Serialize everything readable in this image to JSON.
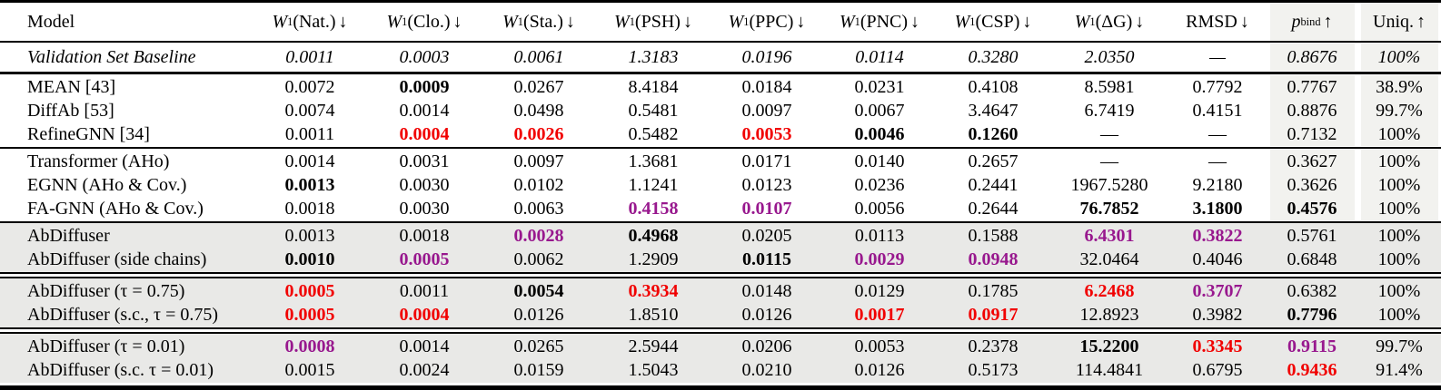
{
  "table": {
    "colors": {
      "best_red": "#f10000",
      "second_best_purple": "#98188e",
      "row_shade": "#e9e9e7",
      "column_shade": "#f2f2ef"
    },
    "columns": [
      {
        "var": "",
        "sub": "",
        "text": "Model",
        "arrow": ""
      },
      {
        "var": "W",
        "sub": "1",
        "text": "(Nat.)",
        "arrow": "↓"
      },
      {
        "var": "W",
        "sub": "1",
        "text": "(Clo.)",
        "arrow": "↓"
      },
      {
        "var": "W",
        "sub": "1",
        "text": "(Sta.)",
        "arrow": "↓"
      },
      {
        "var": "W",
        "sub": "1",
        "text": "(PSH)",
        "arrow": "↓"
      },
      {
        "var": "W",
        "sub": "1",
        "text": "(PPC)",
        "arrow": "↓"
      },
      {
        "var": "W",
        "sub": "1",
        "text": "(PNC)",
        "arrow": "↓"
      },
      {
        "var": "W",
        "sub": "1",
        "text": "(CSP)",
        "arrow": "↓"
      },
      {
        "var": "W",
        "sub": "1",
        "text": "(ΔG)",
        "arrow": "↓"
      },
      {
        "var": "",
        "sub": "",
        "text": "RMSD",
        "arrow": "↓"
      },
      {
        "var": "p",
        "sub": "bind",
        "text": "",
        "arrow": "↑"
      },
      {
        "var": "",
        "sub": "",
        "text": "Uniq.",
        "arrow": "↑"
      }
    ],
    "groups": [
      {
        "name": "baseline",
        "shaded": false,
        "italic": true,
        "sep_above": "none",
        "rows": [
          {
            "model": "Validation Set Baseline",
            "cells": [
              {
                "v": "0.0011",
                "s": ""
              },
              {
                "v": "0.0003",
                "s": ""
              },
              {
                "v": "0.0061",
                "s": ""
              },
              {
                "v": "1.3183",
                "s": ""
              },
              {
                "v": "0.0196",
                "s": ""
              },
              {
                "v": "0.0114",
                "s": ""
              },
              {
                "v": "0.3280",
                "s": ""
              },
              {
                "v": "2.0350",
                "s": ""
              },
              {
                "v": "—",
                "s": ""
              },
              {
                "v": "0.8676",
                "s": ""
              },
              {
                "v": "100%",
                "s": ""
              }
            ]
          }
        ]
      },
      {
        "name": "prior-work",
        "shaded": false,
        "italic": false,
        "sep_above": "thickline",
        "rows": [
          {
            "model": "MEAN [43]",
            "cells": [
              {
                "v": "0.0072",
                "s": ""
              },
              {
                "v": "0.0009",
                "s": "b"
              },
              {
                "v": "0.0267",
                "s": ""
              },
              {
                "v": "8.4184",
                "s": ""
              },
              {
                "v": "0.0184",
                "s": ""
              },
              {
                "v": "0.0231",
                "s": ""
              },
              {
                "v": "0.4108",
                "s": ""
              },
              {
                "v": "8.5981",
                "s": ""
              },
              {
                "v": "0.7792",
                "s": ""
              },
              {
                "v": "0.7767",
                "s": ""
              },
              {
                "v": "38.9%",
                "s": ""
              }
            ]
          },
          {
            "model": "DiffAb [53]",
            "cells": [
              {
                "v": "0.0074",
                "s": ""
              },
              {
                "v": "0.0014",
                "s": ""
              },
              {
                "v": "0.0498",
                "s": ""
              },
              {
                "v": "0.5481",
                "s": ""
              },
              {
                "v": "0.0097",
                "s": ""
              },
              {
                "v": "0.0067",
                "s": ""
              },
              {
                "v": "3.4647",
                "s": ""
              },
              {
                "v": "6.7419",
                "s": ""
              },
              {
                "v": "0.4151",
                "s": ""
              },
              {
                "v": "0.8876",
                "s": ""
              },
              {
                "v": "99.7%",
                "s": ""
              }
            ]
          },
          {
            "model": "RefineGNN [34]",
            "cells": [
              {
                "v": "0.0011",
                "s": ""
              },
              {
                "v": "0.0004",
                "s": "r"
              },
              {
                "v": "0.0026",
                "s": "r"
              },
              {
                "v": "0.5482",
                "s": ""
              },
              {
                "v": "0.0053",
                "s": "r"
              },
              {
                "v": "0.0046",
                "s": "b"
              },
              {
                "v": "0.1260",
                "s": "b"
              },
              {
                "v": "—",
                "s": ""
              },
              {
                "v": "—",
                "s": ""
              },
              {
                "v": "0.7132",
                "s": ""
              },
              {
                "v": "100%",
                "s": ""
              }
            ]
          }
        ]
      },
      {
        "name": "architecture-ablations",
        "shaded": false,
        "italic": false,
        "sep_above": "line",
        "rows": [
          {
            "model": "Transformer (AHo)",
            "cells": [
              {
                "v": "0.0014",
                "s": ""
              },
              {
                "v": "0.0031",
                "s": ""
              },
              {
                "v": "0.0097",
                "s": ""
              },
              {
                "v": "1.3681",
                "s": ""
              },
              {
                "v": "0.0171",
                "s": ""
              },
              {
                "v": "0.0140",
                "s": ""
              },
              {
                "v": "0.2657",
                "s": ""
              },
              {
                "v": "—",
                "s": ""
              },
              {
                "v": "—",
                "s": ""
              },
              {
                "v": "0.3627",
                "s": ""
              },
              {
                "v": "100%",
                "s": ""
              }
            ]
          },
          {
            "model": "EGNN (AHo & Cov.)",
            "cells": [
              {
                "v": "0.0013",
                "s": "b"
              },
              {
                "v": "0.0030",
                "s": ""
              },
              {
                "v": "0.0102",
                "s": ""
              },
              {
                "v": "1.1241",
                "s": ""
              },
              {
                "v": "0.0123",
                "s": ""
              },
              {
                "v": "0.0236",
                "s": ""
              },
              {
                "v": "0.2441",
                "s": ""
              },
              {
                "v": "1967.5280",
                "s": ""
              },
              {
                "v": "9.2180",
                "s": ""
              },
              {
                "v": "0.3626",
                "s": ""
              },
              {
                "v": "100%",
                "s": ""
              }
            ]
          },
          {
            "model": "FA-GNN (AHo & Cov.)",
            "cells": [
              {
                "v": "0.0018",
                "s": ""
              },
              {
                "v": "0.0030",
                "s": ""
              },
              {
                "v": "0.0063",
                "s": ""
              },
              {
                "v": "0.4158",
                "s": "p"
              },
              {
                "v": "0.0107",
                "s": "p"
              },
              {
                "v": "0.0056",
                "s": ""
              },
              {
                "v": "0.2644",
                "s": ""
              },
              {
                "v": "76.7852",
                "s": "b"
              },
              {
                "v": "3.1800",
                "s": "b"
              },
              {
                "v": "0.4576",
                "s": "b"
              },
              {
                "v": "100%",
                "s": ""
              }
            ]
          }
        ]
      },
      {
        "name": "abdiffuser",
        "shaded": true,
        "italic": false,
        "sep_above": "line",
        "rows": [
          {
            "model": "AbDiffuser",
            "cells": [
              {
                "v": "0.0013",
                "s": ""
              },
              {
                "v": "0.0018",
                "s": ""
              },
              {
                "v": "0.0028",
                "s": "p"
              },
              {
                "v": "0.4968",
                "s": "b"
              },
              {
                "v": "0.0205",
                "s": ""
              },
              {
                "v": "0.0113",
                "s": ""
              },
              {
                "v": "0.1588",
                "s": ""
              },
              {
                "v": "6.4301",
                "s": "p"
              },
              {
                "v": "0.3822",
                "s": "p"
              },
              {
                "v": "0.5761",
                "s": ""
              },
              {
                "v": "100%",
                "s": ""
              }
            ]
          },
          {
            "model": "AbDiffuser (side chains)",
            "cells": [
              {
                "v": "0.0010",
                "s": "b"
              },
              {
                "v": "0.0005",
                "s": "p"
              },
              {
                "v": "0.0062",
                "s": ""
              },
              {
                "v": "1.2909",
                "s": ""
              },
              {
                "v": "0.0115",
                "s": "b"
              },
              {
                "v": "0.0029",
                "s": "p"
              },
              {
                "v": "0.0948",
                "s": "p"
              },
              {
                "v": "32.0464",
                "s": ""
              },
              {
                "v": "0.4046",
                "s": ""
              },
              {
                "v": "0.6848",
                "s": ""
              },
              {
                "v": "100%",
                "s": ""
              }
            ]
          }
        ]
      },
      {
        "name": "abdiffuser-tau-0.75",
        "shaded": true,
        "italic": false,
        "sep_above": "double",
        "rows": [
          {
            "model": "AbDiffuser (τ = 0.75)",
            "cells": [
              {
                "v": "0.0005",
                "s": "r"
              },
              {
                "v": "0.0011",
                "s": ""
              },
              {
                "v": "0.0054",
                "s": "b"
              },
              {
                "v": "0.3934",
                "s": "r"
              },
              {
                "v": "0.0148",
                "s": ""
              },
              {
                "v": "0.0129",
                "s": ""
              },
              {
                "v": "0.1785",
                "s": ""
              },
              {
                "v": "6.2468",
                "s": "r"
              },
              {
                "v": "0.3707",
                "s": "p"
              },
              {
                "v": "0.6382",
                "s": ""
              },
              {
                "v": "100%",
                "s": ""
              }
            ]
          },
          {
            "model": "AbDiffuser (s.c., τ = 0.75)",
            "cells": [
              {
                "v": "0.0005",
                "s": "r"
              },
              {
                "v": "0.0004",
                "s": "r"
              },
              {
                "v": "0.0126",
                "s": ""
              },
              {
                "v": "1.8510",
                "s": ""
              },
              {
                "v": "0.0126",
                "s": ""
              },
              {
                "v": "0.0017",
                "s": "r"
              },
              {
                "v": "0.0917",
                "s": "r"
              },
              {
                "v": "12.8923",
                "s": ""
              },
              {
                "v": "0.3982",
                "s": ""
              },
              {
                "v": "0.7796",
                "s": "b"
              },
              {
                "v": "100%",
                "s": ""
              }
            ]
          }
        ]
      },
      {
        "name": "abdiffuser-tau-0.01",
        "shaded": true,
        "italic": false,
        "sep_above": "double",
        "rows": [
          {
            "model": "AbDiffuser (τ = 0.01)",
            "cells": [
              {
                "v": "0.0008",
                "s": "p"
              },
              {
                "v": "0.0014",
                "s": ""
              },
              {
                "v": "0.0265",
                "s": ""
              },
              {
                "v": "2.5944",
                "s": ""
              },
              {
                "v": "0.0206",
                "s": ""
              },
              {
                "v": "0.0053",
                "s": ""
              },
              {
                "v": "0.2378",
                "s": ""
              },
              {
                "v": "15.2200",
                "s": "b"
              },
              {
                "v": "0.3345",
                "s": "r"
              },
              {
                "v": "0.9115",
                "s": "p"
              },
              {
                "v": "99.7%",
                "s": ""
              }
            ]
          },
          {
            "model": "AbDiffuser (s.c. τ = 0.01)",
            "cells": [
              {
                "v": "0.0015",
                "s": ""
              },
              {
                "v": "0.0024",
                "s": ""
              },
              {
                "v": "0.0159",
                "s": ""
              },
              {
                "v": "1.5043",
                "s": ""
              },
              {
                "v": "0.0210",
                "s": ""
              },
              {
                "v": "0.0126",
                "s": ""
              },
              {
                "v": "0.5173",
                "s": ""
              },
              {
                "v": "114.4841",
                "s": ""
              },
              {
                "v": "0.6795",
                "s": ""
              },
              {
                "v": "0.9436",
                "s": "r"
              },
              {
                "v": "91.4%",
                "s": ""
              }
            ]
          }
        ]
      }
    ]
  }
}
